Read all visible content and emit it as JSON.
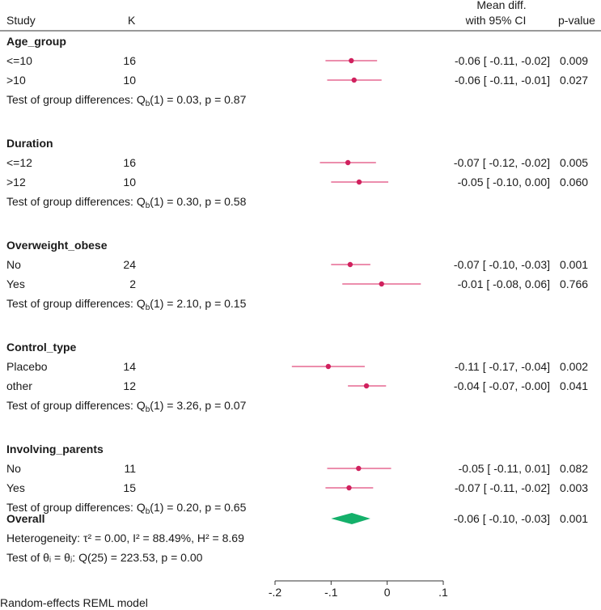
{
  "chart_data": {
    "type": "forest",
    "headers": {
      "study": "Study",
      "k": "K",
      "effect_line1": "Mean diff.",
      "effect_line2": "with 95% CI",
      "pvalue": "p-value"
    },
    "xaxis": {
      "min": -0.2,
      "max": 0.1,
      "ticks": [
        -0.2,
        -0.1,
        0,
        0.1
      ],
      "tick_labels": [
        "-.2",
        "-.1",
        "0",
        ".1"
      ]
    },
    "groups": [
      {
        "name": "Age_group",
        "rows": [
          {
            "label": "<=10",
            "k": "16",
            "est": -0.064,
            "lo": -0.11,
            "hi": -0.018,
            "ci_text": "-0.06 [ -0.11,  -0.02]",
            "p": "0.009"
          },
          {
            "label": ">10",
            "k": "10",
            "est": -0.059,
            "lo": -0.107,
            "hi": -0.01,
            "ci_text": "-0.06 [ -0.11,  -0.01]",
            "p": "0.027"
          }
        ],
        "test": {
          "prefix": "Test of group differences: Q",
          "sub": "b",
          "suffix": "(1) = 0.03, p = 0.87"
        }
      },
      {
        "name": "Duration",
        "rows": [
          {
            "label": "<=12",
            "k": "16",
            "est": -0.07,
            "lo": -0.12,
            "hi": -0.02,
            "ci_text": "-0.07 [ -0.12,  -0.02]",
            "p": "0.005"
          },
          {
            "label": ">12",
            "k": "10",
            "est": -0.05,
            "lo": -0.1,
            "hi": 0.002,
            "ci_text": "-0.05 [ -0.10,   0.00]",
            "p": "0.060"
          }
        ],
        "test": {
          "prefix": "Test of group differences: Q",
          "sub": "b",
          "suffix": "(1) = 0.30, p = 0.58"
        }
      },
      {
        "name": "Overweight_obese",
        "rows": [
          {
            "label": "No",
            "k": "24",
            "est": -0.066,
            "lo": -0.1,
            "hi": -0.03,
            "ci_text": "-0.07 [ -0.10,  -0.03]",
            "p": "0.001"
          },
          {
            "label": "Yes",
            "k": "2",
            "est": -0.01,
            "lo": -0.08,
            "hi": 0.06,
            "ci_text": "-0.01 [ -0.08,   0.06]",
            "p": "0.766"
          }
        ],
        "test": {
          "prefix": "Test of group differences: Q",
          "sub": "b",
          "suffix": "(1) = 2.10, p = 0.15"
        }
      },
      {
        "name": "Control_type",
        "rows": [
          {
            "label": "Placebo",
            "k": "14",
            "est": -0.105,
            "lo": -0.17,
            "hi": -0.04,
            "ci_text": "-0.11 [ -0.17,  -0.04]",
            "p": "0.002"
          },
          {
            "label": "other",
            "k": "12",
            "est": -0.037,
            "lo": -0.07,
            "hi": -0.002,
            "ci_text": "-0.04 [ -0.07,  -0.00]",
            "p": "0.041"
          }
        ],
        "test": {
          "prefix": "Test of group differences: Q",
          "sub": "b",
          "suffix": "(1) = 3.26, p = 0.07"
        }
      },
      {
        "name": "Involving_parents",
        "rows": [
          {
            "label": "No",
            "k": "11",
            "est": -0.051,
            "lo": -0.107,
            "hi": 0.007,
            "ci_text": "-0.05 [ -0.11,   0.01]",
            "p": "0.082"
          },
          {
            "label": "Yes",
            "k": "15",
            "est": -0.068,
            "lo": -0.11,
            "hi": -0.025,
            "ci_text": "-0.07 [ -0.11,  -0.02]",
            "p": "0.003"
          }
        ],
        "test": {
          "prefix": "Test of group differences: Q",
          "sub": "b",
          "suffix": "(1) = 0.20, p = 0.65"
        }
      }
    ],
    "overall": {
      "label": "Overall",
      "est": -0.063,
      "lo": -0.1,
      "hi": -0.03,
      "ci_text": "-0.06 [ -0.10,  -0.03]",
      "p": "0.001",
      "heterogeneity": "Heterogeneity: τ² = 0.00, I² = 88.49%, H² = 8.69",
      "theta_test": "Test of θᵢ = θⱼ: Q(25) = 223.53, p = 0.00"
    },
    "footnote": "Random-effects REML model",
    "colors": {
      "marker": "#d0215e",
      "ci": "#e14a7c",
      "diamond": "#14b06a",
      "rule": "#333333"
    }
  }
}
